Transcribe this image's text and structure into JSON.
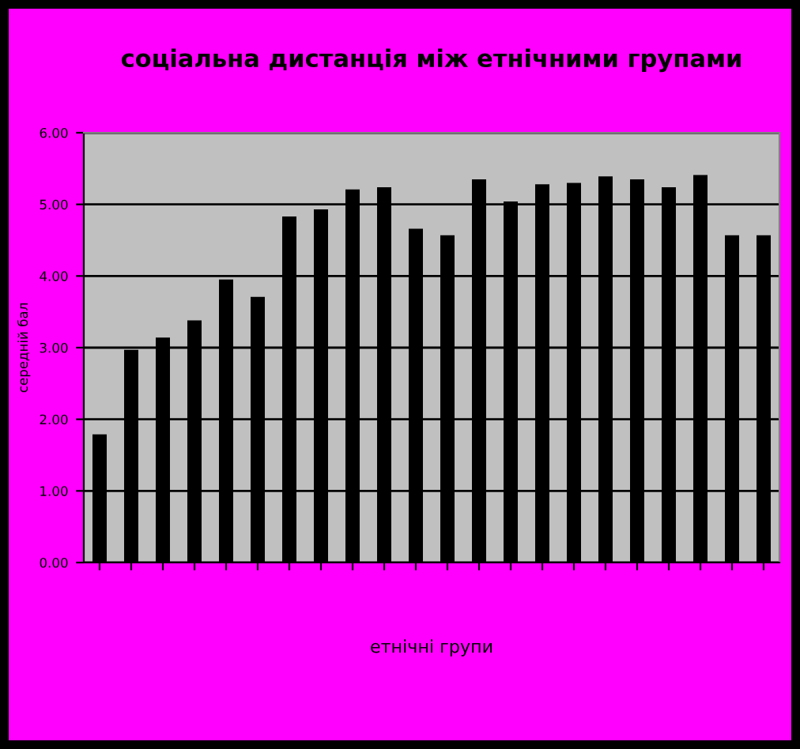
{
  "chart_data": {
    "type": "bar",
    "title": "соціальна дистанція між етнічними групами",
    "xlabel": "етнічні групи",
    "ylabel": "середній бал",
    "categories": [
      null,
      null,
      null,
      null,
      null,
      null,
      null,
      null,
      null,
      null,
      null,
      null,
      null,
      null,
      null,
      null,
      null,
      null,
      null,
      null,
      null,
      null
    ],
    "values": [
      1.79,
      2.97,
      3.14,
      3.38,
      3.95,
      3.71,
      4.83,
      4.93,
      5.21,
      5.24,
      4.66,
      4.57,
      5.35,
      5.04,
      5.28,
      5.3,
      5.39,
      5.35,
      5.24,
      5.41,
      4.57,
      4.57
    ],
    "color": "#000000",
    "ylim": [
      0,
      6
    ],
    "yticks": [
      {
        "value": 0,
        "label": "0.00"
      },
      {
        "value": 1,
        "label": "1.00"
      },
      {
        "value": 2,
        "label": "2.00"
      },
      {
        "value": 3,
        "label": "3.00"
      },
      {
        "value": 4,
        "label": "4.00"
      },
      {
        "value": 5,
        "label": "5.00"
      },
      {
        "value": 6,
        "label": "6.00"
      }
    ],
    "grid": "y",
    "legend": false
  }
}
